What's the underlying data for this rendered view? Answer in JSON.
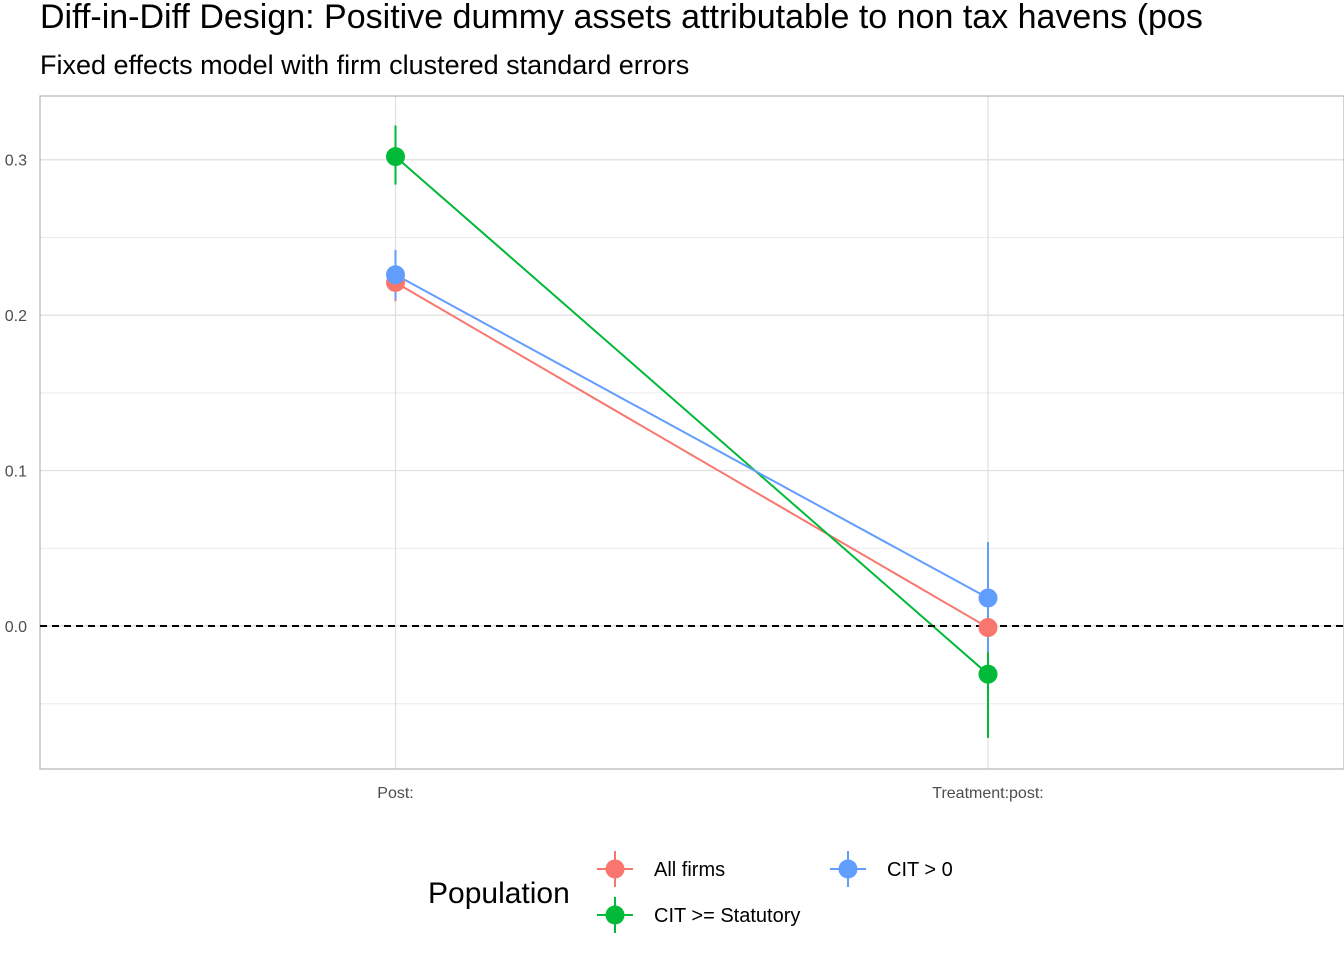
{
  "chart_data": {
    "type": "scatter",
    "title": "Diff-in-Diff Design: Positive dummy assets attributable to non tax havens (pos",
    "subtitle": "Fixed effects model with firm clustered standard errors",
    "xlabel": "",
    "ylabel": "",
    "categories": [
      "Post:",
      "Treatment:post:"
    ],
    "ylim": [
      -0.092,
      0.341
    ],
    "yticks": [
      0.0,
      0.1,
      0.2,
      0.3
    ],
    "ytick_labels": [
      "0.0",
      "0.1",
      "0.2",
      "0.3"
    ],
    "reference_line": {
      "y": 0,
      "style": "dashed"
    },
    "grid": true,
    "legend": {
      "title": "Population",
      "position": "bottom"
    },
    "series": [
      {
        "name": "All firms",
        "color": "#F8766D",
        "values": [
          0.221,
          -0.001
        ],
        "lower": [
          0.209,
          -0.013
        ],
        "upper": [
          0.233,
          0.011
        ]
      },
      {
        "name": "CIT >= Statutory",
        "color": "#00BA38",
        "values": [
          0.302,
          -0.031
        ],
        "lower": [
          0.284,
          -0.072
        ],
        "upper": [
          0.322,
          0.01
        ]
      },
      {
        "name": "CIT > 0",
        "color": "#619CFF",
        "values": [
          0.226,
          0.018
        ],
        "lower": [
          0.21,
          -0.017
        ],
        "upper": [
          0.242,
          0.054
        ]
      }
    ]
  }
}
